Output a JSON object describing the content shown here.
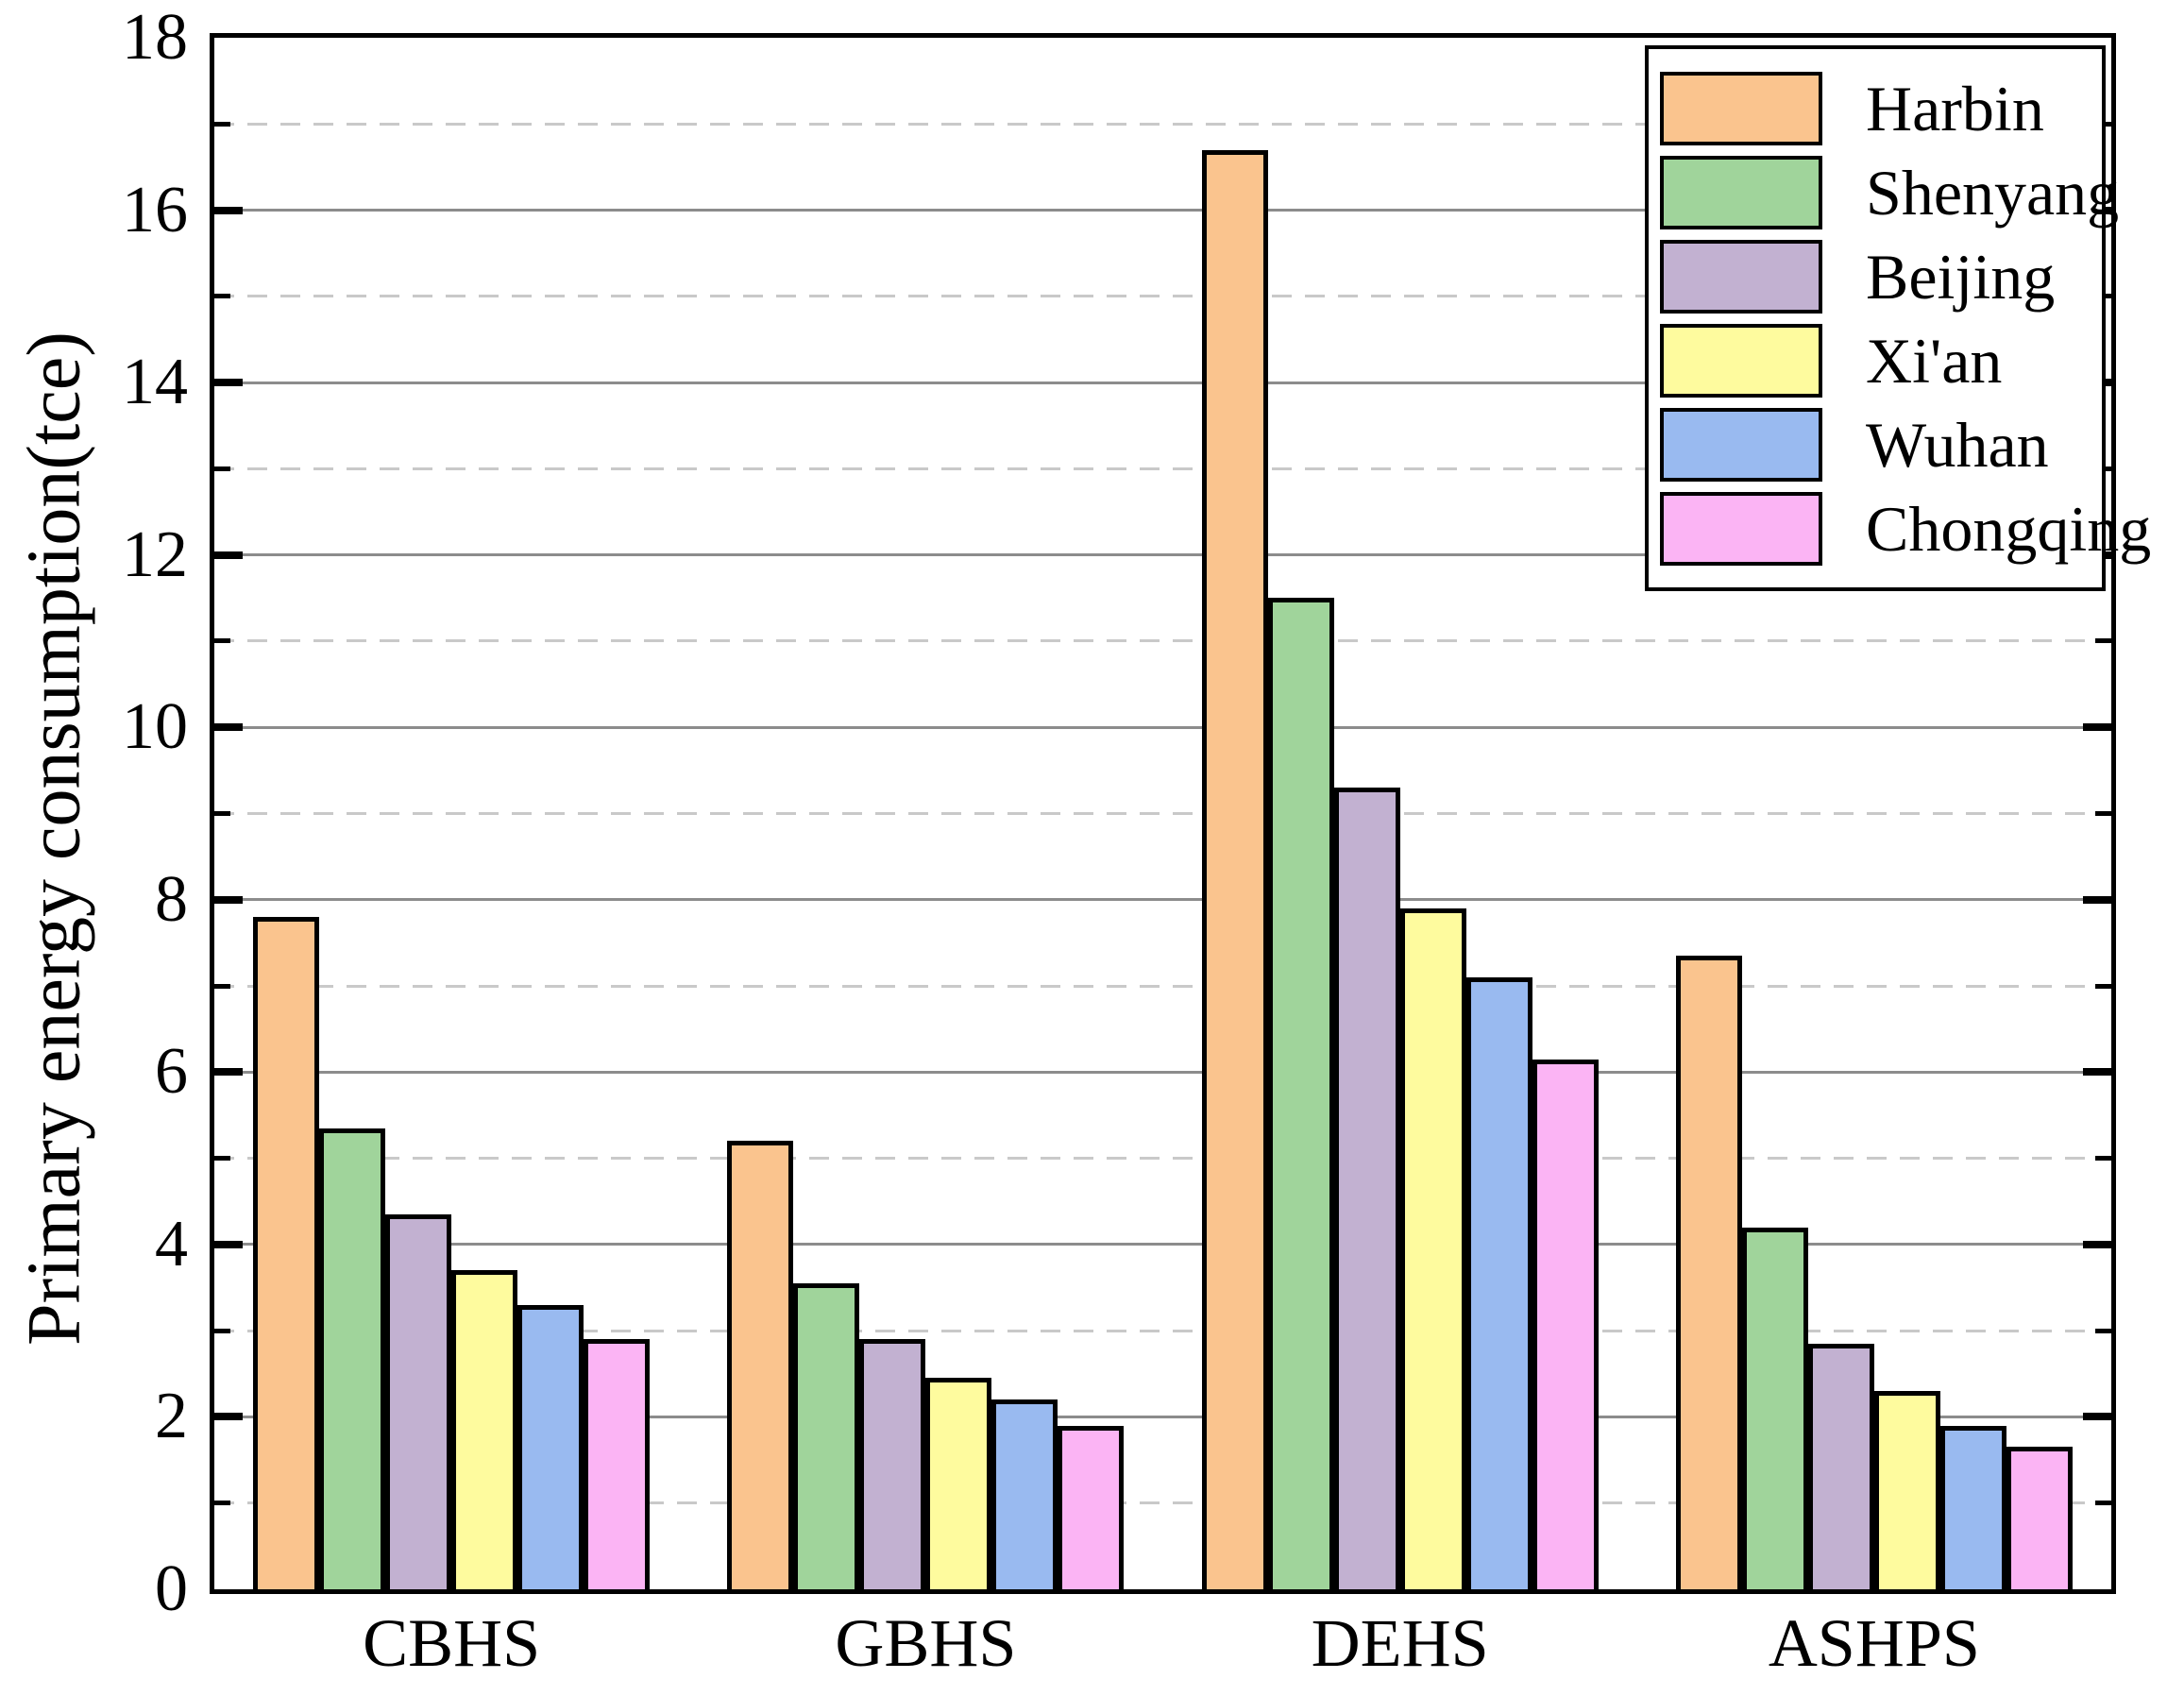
{
  "figure": {
    "background": "#ffffff",
    "axis_color": "#000000",
    "major_grid_color": "#8c8c8c",
    "minor_grid_color": "#c9c9c9"
  },
  "chart_data": {
    "type": "bar",
    "title": "",
    "xlabel": "",
    "ylabel": "Primary energy consumption(tce)",
    "categories": [
      "CBHS",
      "GBHS",
      "DEHS",
      "ASHPS"
    ],
    "series": [
      {
        "name": "Harbin",
        "color": "#FAC48E",
        "values": [
          7.8,
          5.2,
          16.7,
          7.35
        ]
      },
      {
        "name": "Shenyang",
        "color": "#A0D49B",
        "values": [
          5.35,
          3.55,
          11.5,
          4.2
        ]
      },
      {
        "name": "Beijing",
        "color": "#C2B1D1",
        "values": [
          4.35,
          2.9,
          9.3,
          2.85
        ]
      },
      {
        "name": "Xi'an",
        "color": "#FEFB9E",
        "values": [
          3.7,
          2.45,
          7.9,
          2.3
        ]
      },
      {
        "name": "Wuhan",
        "color": "#99BAF0",
        "values": [
          3.3,
          2.2,
          7.1,
          1.9
        ]
      },
      {
        "name": "Chongqing",
        "color": "#FBB4F4",
        "values": [
          2.9,
          1.9,
          6.15,
          1.65
        ]
      }
    ],
    "ylim": [
      0,
      18
    ],
    "y_major_ticks": [
      0,
      2,
      4,
      6,
      8,
      10,
      12,
      14,
      16,
      18
    ],
    "y_minor_ticks": [
      1,
      3,
      5,
      7,
      9,
      11,
      13,
      15,
      17
    ],
    "grid": {
      "major": "solid",
      "minor": "dashed",
      "enabled": true
    },
    "legend_position": "upper right",
    "bar_edge_color": "#000000"
  }
}
